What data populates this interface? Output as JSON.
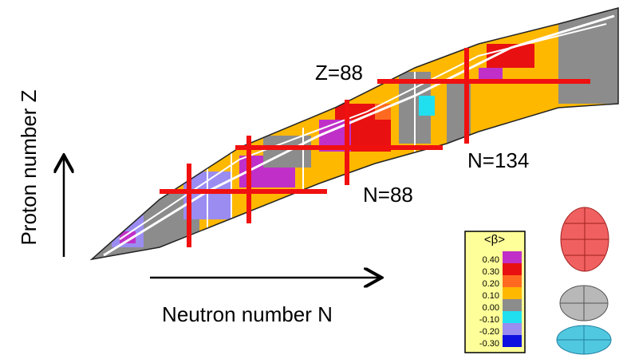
{
  "axes": {
    "y_label": "Proton number  Z",
    "x_label": "Neutron number N"
  },
  "annotations": {
    "z88": "Z=88",
    "n88": "N=88",
    "n134": "N=134"
  },
  "legend": {
    "title": "<β>",
    "items": [
      {
        "label": "0.40",
        "color": "#c030c8"
      },
      {
        "label": "0.30",
        "color": "#e81010"
      },
      {
        "label": "0.20",
        "color": "#ff6a20"
      },
      {
        "label": "0.10",
        "color": "#ffb800"
      },
      {
        "label": "0.00",
        "color": "#8c8c8c"
      },
      {
        "label": "-0.10",
        "color": "#20e0f0"
      },
      {
        "label": "-0.20",
        "color": "#9a8cf0"
      },
      {
        "label": "-0.30",
        "color": "#1010e0"
      }
    ]
  }
}
